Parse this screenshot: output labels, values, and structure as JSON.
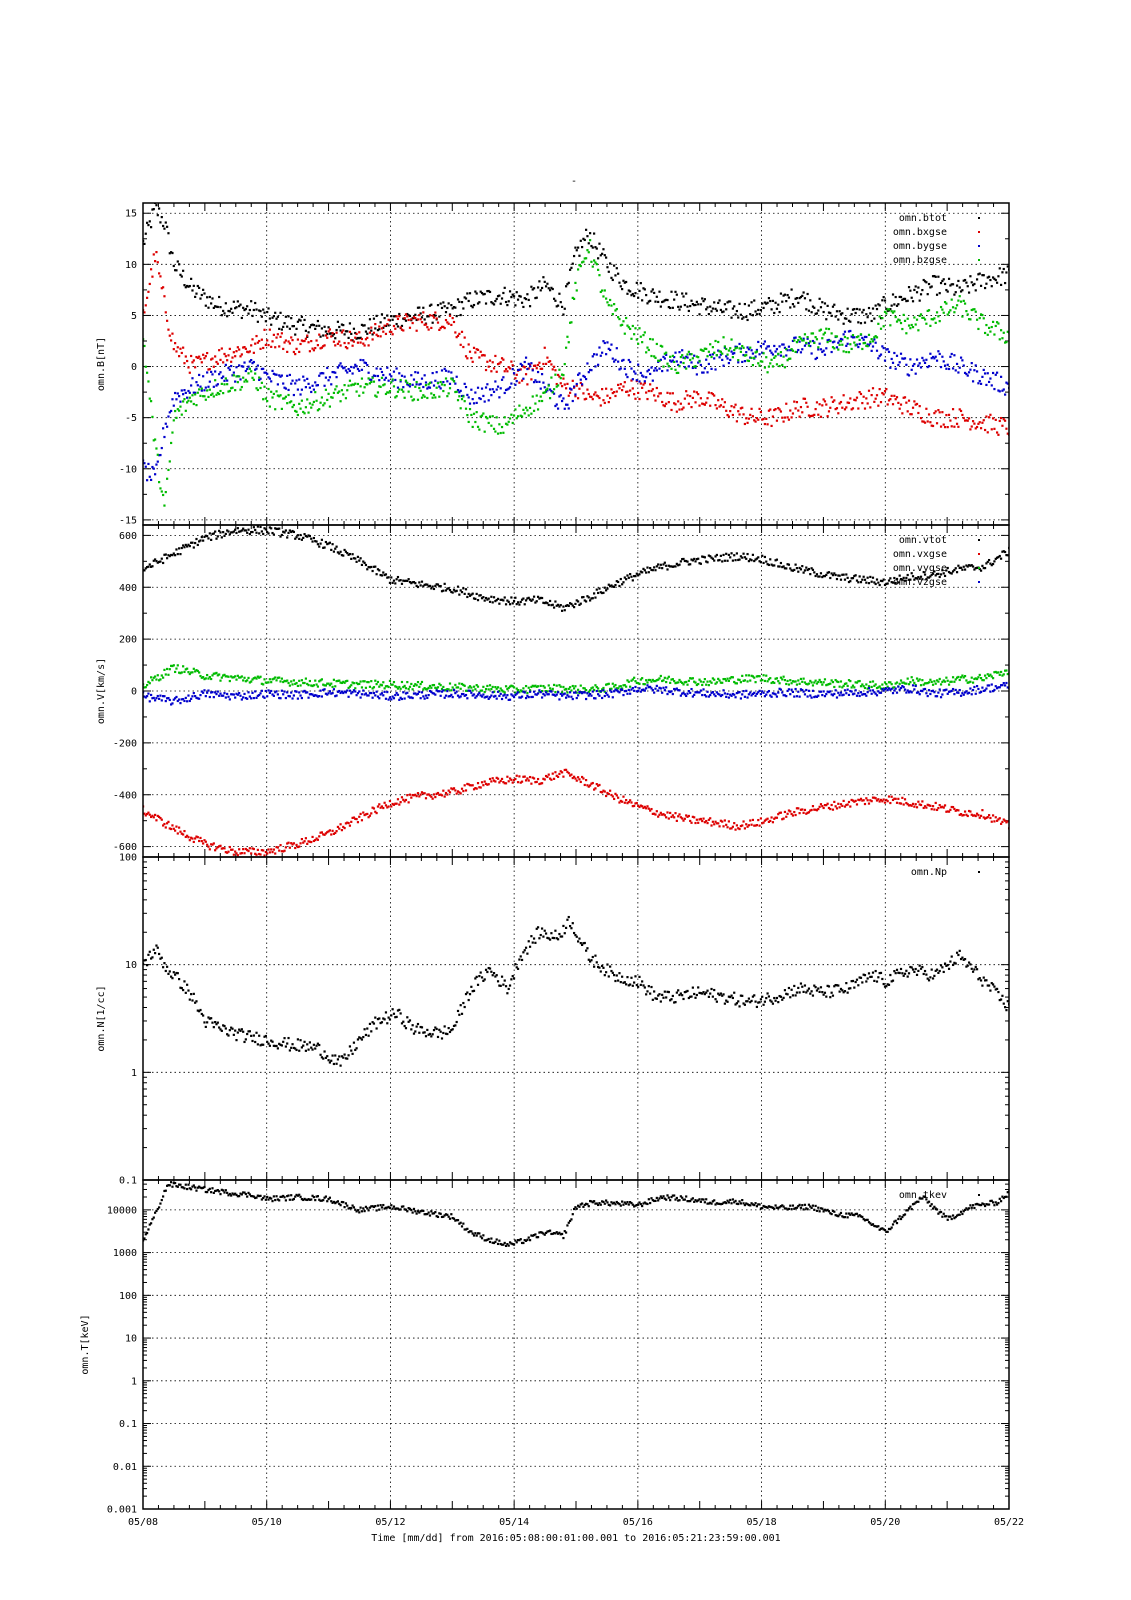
{
  "header_mark": "-",
  "x_axis": {
    "label": "Time [mm/dd]  from 2016:05:08:00:01:00.001  to  2016:05:21:23:59:00.001",
    "range_days": [
      8,
      22
    ],
    "tick_days": [
      8,
      10,
      12,
      14,
      16,
      18,
      20,
      22
    ],
    "tick_labels": [
      "05/08",
      "05/10",
      "05/12",
      "05/14",
      "05/16",
      "05/18",
      "05/20",
      "05/22"
    ]
  },
  "chart_data": [
    {
      "type": "scatter",
      "ylabel": "omn.B[nT]",
      "scale": "linear",
      "ylim": [
        -15.5,
        16
      ],
      "yticks": [
        -15,
        -10,
        -5,
        0,
        5,
        10,
        15
      ],
      "ytick_labels": [
        "-15",
        "-10",
        "-5",
        "0",
        "5",
        "10",
        "15"
      ],
      "legend_placement": "top-right",
      "grid": true,
      "series": [
        {
          "name": "omn.btot",
          "color": "#000000",
          "x": [
            8.0,
            8.2,
            8.35,
            8.5,
            8.8,
            9.2,
            9.8,
            10.0,
            10.5,
            11.0,
            11.5,
            12.0,
            12.5,
            13.0,
            13.3,
            13.8,
            14.2,
            14.5,
            14.8,
            15.0,
            15.2,
            15.5,
            15.8,
            16.2,
            16.6,
            17.0,
            17.4,
            17.8,
            18.2,
            18.6,
            19.0,
            19.4,
            19.8,
            20.0,
            20.4,
            20.8,
            21.2,
            21.6,
            22.0
          ],
          "y": [
            12,
            15.5,
            14,
            10,
            7.5,
            6,
            5.5,
            4.8,
            4,
            3.5,
            3.5,
            4.5,
            5,
            5.5,
            6.5,
            7,
            6.5,
            8,
            6,
            11,
            13,
            10,
            8,
            7,
            6.5,
            6,
            5.5,
            5.5,
            6,
            7,
            5.5,
            5,
            5,
            6,
            7,
            8,
            7.5,
            8.5,
            9
          ]
        },
        {
          "name": "omn.bxgse",
          "color": "#dd0000",
          "x": [
            8.0,
            8.2,
            8.35,
            8.5,
            8.8,
            9.2,
            9.8,
            10.0,
            10.5,
            11.0,
            11.5,
            12.0,
            12.5,
            13.0,
            13.3,
            13.8,
            14.2,
            14.5,
            14.8,
            15.0,
            15.2,
            15.5,
            15.8,
            16.2,
            16.6,
            17.0,
            17.4,
            17.8,
            18.2,
            18.6,
            19.0,
            19.4,
            19.8,
            20.0,
            20.4,
            20.8,
            21.2,
            21.6,
            22.0
          ],
          "y": [
            5,
            11,
            6,
            2,
            0,
            1,
            2,
            3,
            2,
            3,
            2.5,
            4,
            4.5,
            4.5,
            1,
            0,
            -1,
            1,
            -2,
            -2,
            -3,
            -3,
            -2,
            -2.5,
            -3.5,
            -3,
            -4,
            -5,
            -5,
            -4,
            -4,
            -3.5,
            -3,
            -3,
            -4,
            -5,
            -5,
            -5.5,
            -6
          ]
        },
        {
          "name": "omn.bygse",
          "color": "#0000cc",
          "x": [
            8.0,
            8.2,
            8.35,
            8.5,
            8.8,
            9.2,
            9.8,
            10.0,
            10.5,
            11.0,
            11.5,
            12.0,
            12.5,
            13.0,
            13.3,
            13.8,
            14.2,
            14.5,
            14.8,
            15.0,
            15.2,
            15.5,
            15.8,
            16.2,
            16.6,
            17.0,
            17.4,
            17.8,
            18.2,
            18.6,
            19.0,
            19.4,
            19.8,
            20.0,
            20.4,
            20.8,
            21.2,
            21.6,
            22.0
          ],
          "y": [
            -10,
            -11,
            -6,
            -3,
            -2,
            -1,
            0,
            -1,
            -2,
            -1,
            0,
            -1,
            -1.5,
            -1,
            -3,
            -2,
            0,
            -2,
            -4,
            -2,
            0,
            2,
            0,
            -1,
            1,
            0,
            1,
            1.5,
            2,
            2,
            1.5,
            3,
            2,
            1,
            0,
            1,
            0,
            -1,
            -2
          ]
        },
        {
          "name": "omn.bzgse",
          "color": "#00bb00",
          "x": [
            8.0,
            8.2,
            8.35,
            8.5,
            8.8,
            9.2,
            9.8,
            10.0,
            10.5,
            11.0,
            11.5,
            12.0,
            12.5,
            13.0,
            13.3,
            13.8,
            14.2,
            14.5,
            14.8,
            15.0,
            15.2,
            15.5,
            15.8,
            16.2,
            16.6,
            17.0,
            17.4,
            17.8,
            18.2,
            18.6,
            19.0,
            19.4,
            19.8,
            20.0,
            20.4,
            20.8,
            21.2,
            21.6,
            22.0
          ],
          "y": [
            3,
            -8,
            -14,
            -5,
            -3,
            -2,
            -1,
            -3,
            -4,
            -3,
            -2,
            -2,
            -2.5,
            -2,
            -5,
            -6,
            -4,
            -3,
            0,
            8,
            12,
            6,
            4,
            2,
            0,
            1,
            2,
            1,
            0,
            2,
            3,
            2,
            3,
            5,
            4,
            5,
            6,
            4,
            3
          ]
        }
      ]
    },
    {
      "type": "scatter",
      "ylabel": "omn.V[km/s]",
      "scale": "linear",
      "ylim": [
        -640,
        640
      ],
      "yticks": [
        -600,
        -400,
        -200,
        0,
        200,
        400,
        600
      ],
      "ytick_labels": [
        "-600",
        "-400",
        "-200",
        "0",
        "200",
        "400",
        "600"
      ],
      "legend_placement": "top-right",
      "grid": true,
      "series": [
        {
          "name": "omn.vtot",
          "color": "#000000",
          "x": [
            8.0,
            8.5,
            9.0,
            9.5,
            10.0,
            10.5,
            11.0,
            11.5,
            12.0,
            12.5,
            13.0,
            13.5,
            14.0,
            14.4,
            14.8,
            15.2,
            15.6,
            16.0,
            16.4,
            16.8,
            17.2,
            17.6,
            18.0,
            18.4,
            18.8,
            19.2,
            19.6,
            20.0,
            20.4,
            20.8,
            21.2,
            21.6,
            22.0
          ],
          "y": [
            470,
            530,
            590,
            620,
            620,
            600,
            560,
            500,
            430,
            410,
            395,
            360,
            345,
            350,
            320,
            360,
            410,
            450,
            480,
            500,
            510,
            520,
            510,
            480,
            460,
            440,
            430,
            420,
            440,
            450,
            470,
            480,
            540
          ]
        },
        {
          "name": "omn.vxgse",
          "color": "#dd0000",
          "x": [
            8.0,
            8.5,
            9.0,
            9.5,
            10.0,
            10.5,
            11.0,
            11.5,
            12.0,
            12.5,
            13.0,
            13.5,
            14.0,
            14.4,
            14.8,
            15.2,
            15.6,
            16.0,
            16.4,
            16.8,
            17.2,
            17.6,
            18.0,
            18.4,
            18.8,
            19.2,
            19.6,
            20.0,
            20.4,
            20.8,
            21.2,
            21.6,
            22.0
          ],
          "y": [
            -460,
            -530,
            -590,
            -620,
            -620,
            -590,
            -550,
            -490,
            -430,
            -405,
            -390,
            -355,
            -340,
            -345,
            -315,
            -355,
            -405,
            -445,
            -475,
            -495,
            -505,
            -520,
            -505,
            -475,
            -455,
            -440,
            -425,
            -415,
            -430,
            -445,
            -465,
            -475,
            -520
          ]
        },
        {
          "name": "omn.vygse",
          "color": "#00bb00",
          "x": [
            8.0,
            8.5,
            9.0,
            9.5,
            10.0,
            10.5,
            11.0,
            11.5,
            12.0,
            12.5,
            13.0,
            13.5,
            14.0,
            14.4,
            14.8,
            15.2,
            15.6,
            16.0,
            16.4,
            16.8,
            17.2,
            17.6,
            18.0,
            18.4,
            18.8,
            19.2,
            19.6,
            20.0,
            20.4,
            20.8,
            21.2,
            21.6,
            22.0
          ],
          "y": [
            20,
            90,
            60,
            50,
            40,
            35,
            30,
            25,
            25,
            20,
            15,
            10,
            5,
            10,
            10,
            5,
            15,
            40,
            45,
            40,
            35,
            45,
            50,
            40,
            35,
            30,
            25,
            20,
            40,
            30,
            45,
            50,
            80
          ]
        },
        {
          "name": "omn.vzgse",
          "color": "#0000cc",
          "x": [
            8.0,
            8.5,
            9.0,
            9.5,
            10.0,
            10.5,
            11.0,
            11.5,
            12.0,
            12.5,
            13.0,
            13.5,
            14.0,
            14.4,
            14.8,
            15.2,
            15.6,
            16.0,
            16.4,
            16.8,
            17.2,
            17.6,
            18.0,
            18.4,
            18.8,
            19.2,
            19.6,
            20.0,
            20.4,
            20.8,
            21.2,
            21.6,
            22.0
          ],
          "y": [
            -20,
            -40,
            -10,
            -20,
            -10,
            -15,
            -5,
            -10,
            -20,
            -15,
            -10,
            -15,
            -20,
            -10,
            -20,
            -15,
            -10,
            10,
            5,
            -5,
            -10,
            -15,
            -10,
            -5,
            -10,
            -10,
            -5,
            0,
            10,
            -10,
            -5,
            10,
            20
          ]
        }
      ]
    },
    {
      "type": "scatter",
      "ylabel": "omn.N[1/cc]",
      "scale": "log",
      "ylim": [
        0.1,
        100
      ],
      "yticks": [
        0.1,
        1,
        10,
        100
      ],
      "ytick_labels": [
        "0.1",
        "1",
        "10",
        "100"
      ],
      "legend_placement": "top-right",
      "grid": true,
      "series": [
        {
          "name": "omn.Np",
          "color": "#000000",
          "x": [
            8.0,
            8.2,
            8.4,
            8.6,
            8.8,
            9.0,
            9.3,
            9.6,
            10.0,
            10.4,
            10.8,
            11.2,
            11.5,
            11.8,
            12.1,
            12.4,
            12.8,
            13.0,
            13.3,
            13.6,
            13.9,
            14.1,
            14.4,
            14.7,
            14.9,
            15.2,
            15.6,
            16.0,
            16.3,
            16.6,
            17.0,
            17.4,
            17.8,
            18.2,
            18.6,
            19.0,
            19.4,
            19.8,
            20.0,
            20.4,
            20.8,
            21.2,
            21.6,
            22.0
          ],
          "y": [
            10,
            14,
            9,
            7,
            5,
            3,
            2.5,
            2.2,
            2,
            1.8,
            1.7,
            1.2,
            2,
            3,
            3.5,
            2.5,
            2.3,
            2.5,
            6,
            9,
            6,
            12,
            20,
            18,
            26,
            12,
            8,
            7,
            5,
            5,
            5.5,
            5,
            4.5,
            5,
            6,
            5.5,
            6,
            8,
            7,
            9,
            8,
            12,
            7,
            4
          ]
        }
      ]
    },
    {
      "type": "scatter",
      "ylabel": "omn.T[keV]",
      "scale": "log",
      "ylim": [
        0.001,
        50000
      ],
      "yticks": [
        0.001,
        0.01,
        0.1,
        1,
        10,
        100,
        1000,
        10000
      ],
      "ytick_labels": [
        "0.001",
        "0.01",
        "0.1",
        "1",
        "10",
        "100",
        "1000",
        "10000"
      ],
      "legend_placement": "top-right",
      "grid": true,
      "series": [
        {
          "name": "omn.tkev",
          "color": "#000000",
          "x": [
            8.0,
            8.2,
            8.4,
            8.7,
            9.0,
            9.4,
            9.8,
            10.0,
            10.5,
            11.0,
            11.5,
            12.0,
            12.5,
            13.0,
            13.3,
            13.6,
            13.9,
            14.2,
            14.5,
            14.8,
            15.0,
            15.3,
            15.7,
            16.0,
            16.4,
            16.8,
            17.2,
            17.6,
            18.0,
            18.4,
            18.8,
            19.2,
            19.6,
            20.0,
            20.3,
            20.6,
            21.0,
            21.4,
            21.8,
            22.0
          ],
          "y": [
            2000,
            8000,
            40000,
            35000,
            30000,
            25000,
            22000,
            18000,
            20000,
            18000,
            10000,
            12000,
            9000,
            7000,
            3000,
            2000,
            1500,
            2000,
            3000,
            2500,
            12000,
            15000,
            14000,
            13000,
            20000,
            18000,
            15000,
            16000,
            12000,
            11000,
            12000,
            8000,
            7000,
            3000,
            8000,
            20000,
            6000,
            12000,
            15000,
            25000
          ]
        }
      ]
    }
  ]
}
